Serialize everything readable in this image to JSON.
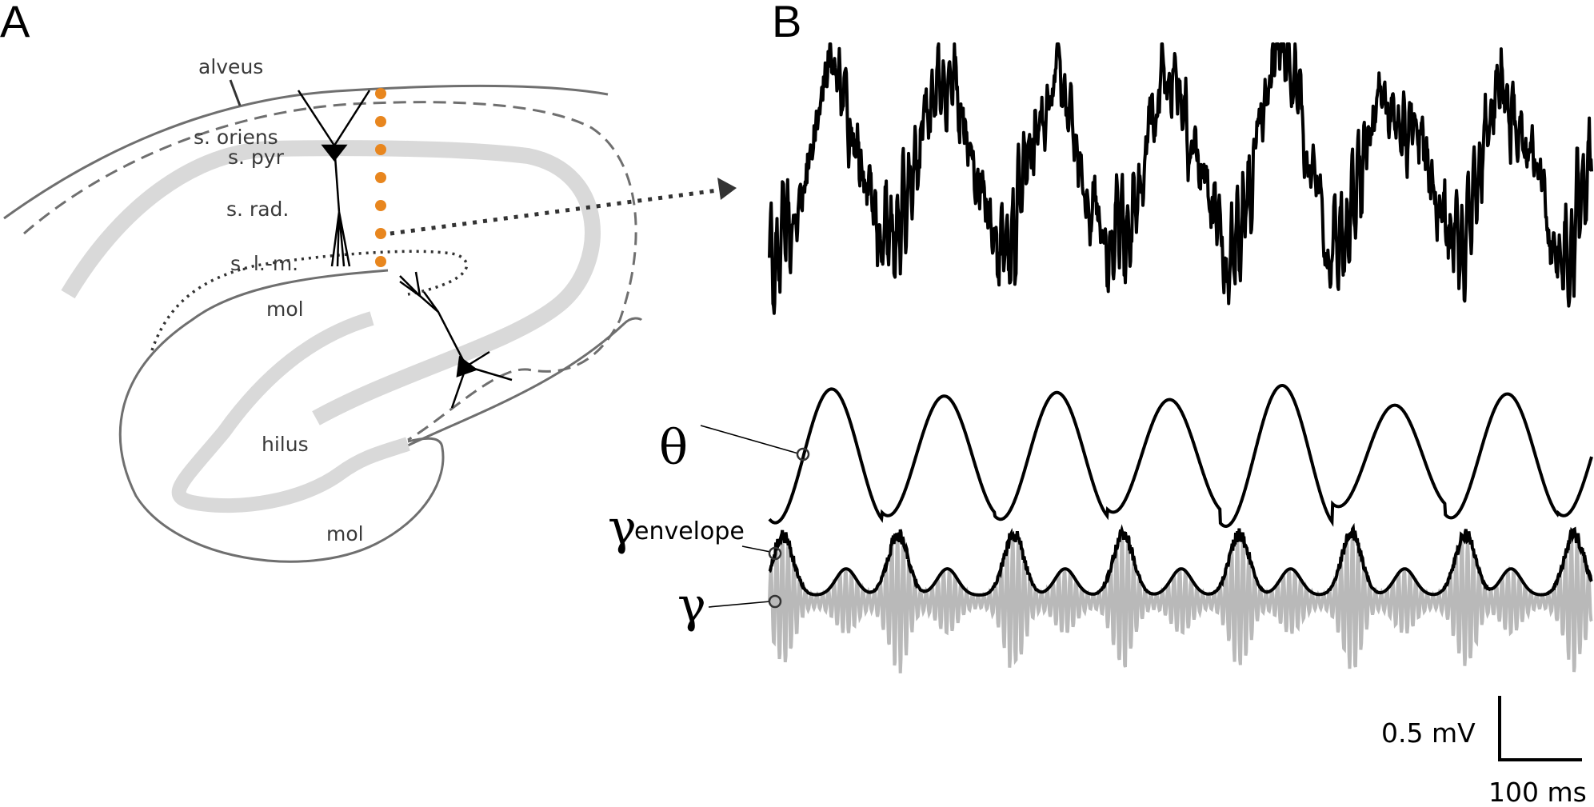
{
  "panels": {
    "a": {
      "letter": "A"
    },
    "b": {
      "letter": "B"
    }
  },
  "hippocampus": {
    "layers": {
      "alveus": "alveus",
      "oriens": "s. oriens",
      "pyr": "s. pyr",
      "rad": "s. rad.",
      "lm": "s. l.-m.",
      "mol_upper": "mol",
      "hilus": "hilus",
      "mol_lower": "mol"
    },
    "electrode_color": "#e8861e",
    "electrode_count": 7,
    "cell_layer_color": "#d9d9d9",
    "outline_color": "#6f6f6f"
  },
  "traces": {
    "theta_symbol": "θ",
    "gamma_envelope_symbol": "γ",
    "gamma_envelope_subscript": "envelope",
    "gamma_symbol": "γ",
    "trace_color": "#000000",
    "gamma_color": "#b9b9b9"
  },
  "scalebar": {
    "voltage": "0.5 mV",
    "time": "100 ms"
  }
}
